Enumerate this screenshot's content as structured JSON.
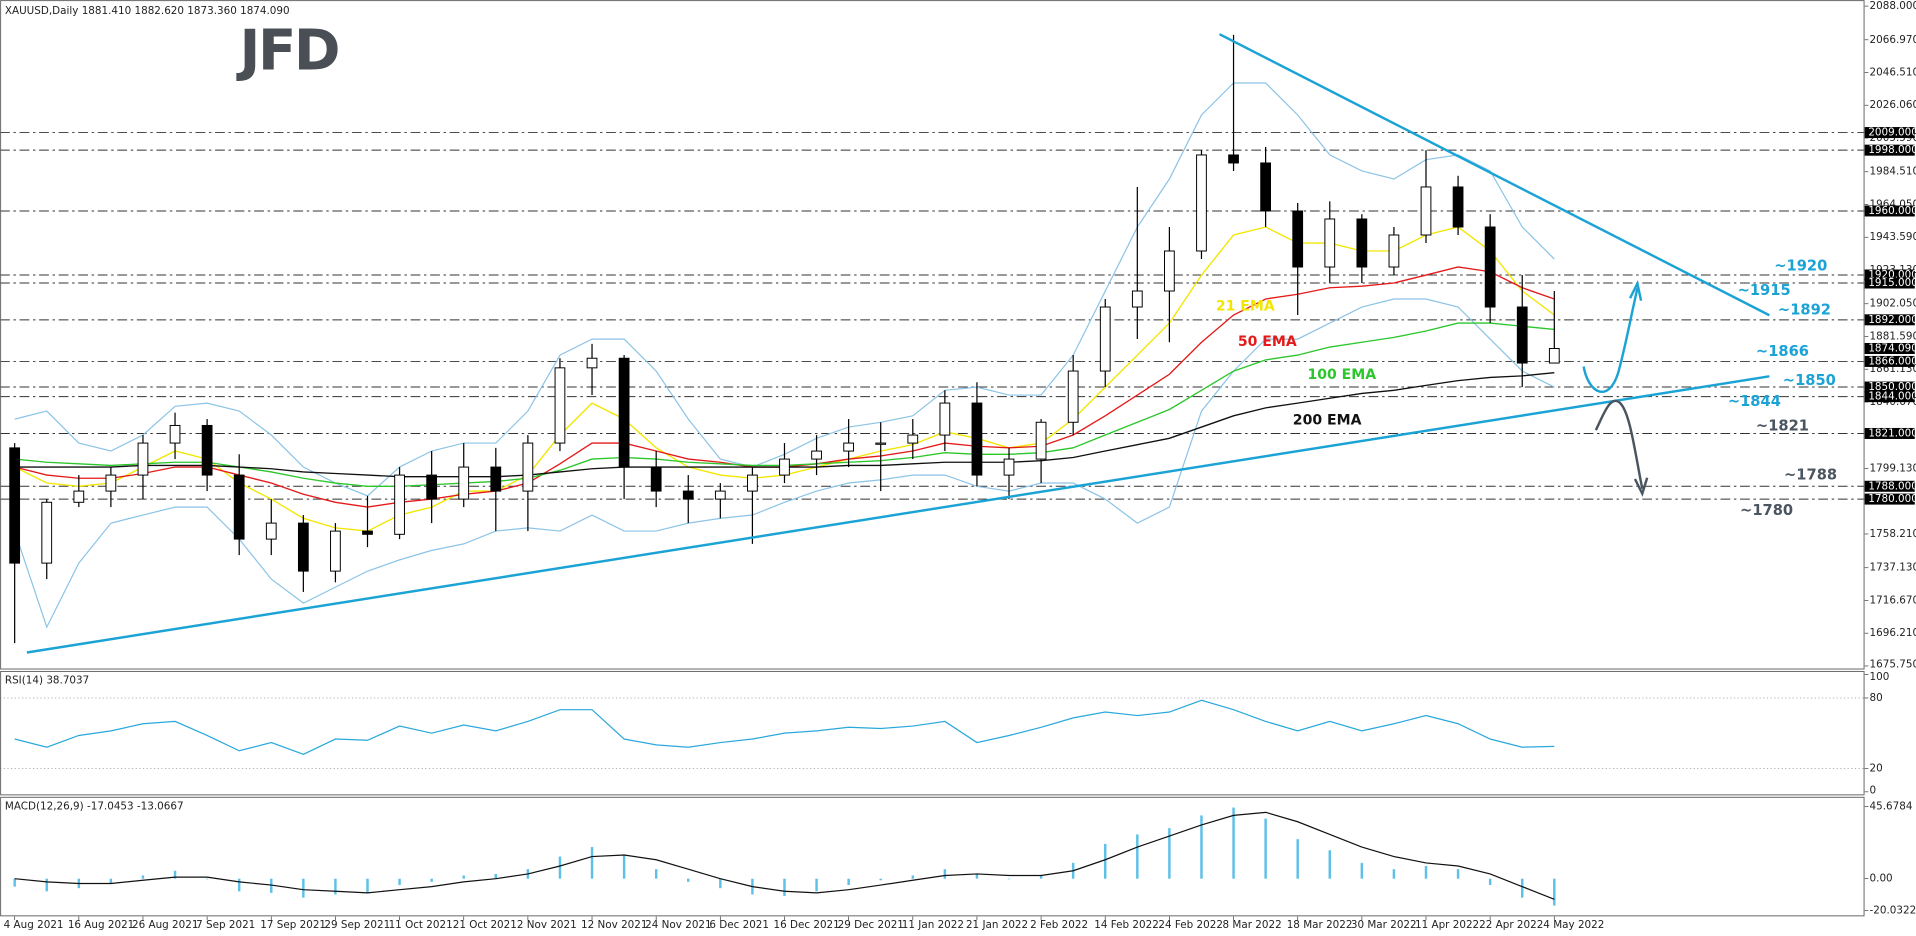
{
  "header": "XAUUSD,Daily  1881.410 1882.620 1873.360 1874.090",
  "logo": "JFD",
  "chart_data": [
    {
      "type": "candlestick",
      "categories": [
        "4 Aug 2021",
        null,
        "16 Aug 2021",
        null,
        "26 Aug 2021",
        null,
        "7 Sep 2021",
        null,
        "17 Sep 2021",
        null,
        "29 Sep 2021",
        null,
        "11 Oct 2021",
        null,
        "21 Oct 2021",
        null,
        "2 Nov 2021",
        null,
        "12 Nov 2021",
        null,
        "24 Nov 2021",
        null,
        "6 Dec 2021",
        null,
        "16 Dec 2021",
        null,
        "29 Dec 2021",
        null,
        "11 Jan 2022",
        null,
        "21 Jan 2022",
        null,
        "2 Feb 2022",
        null,
        "14 Feb 2022",
        null,
        "24 Feb 2022",
        null,
        "8 Mar 2022",
        null,
        "18 Mar 2022",
        null,
        "30 Mar 2022",
        null,
        "11 Apr 2022",
        null,
        "22 Apr 2022",
        null,
        "4 May 2022"
      ],
      "open": [
        1812,
        1740,
        1778,
        1785,
        1795,
        1815,
        1826,
        1795,
        1755,
        1765,
        1735,
        1760,
        1758,
        1795,
        1780,
        1800,
        1785,
        1815,
        1862,
        1868,
        1800,
        1785,
        1780,
        1785,
        1795,
        1805,
        1810,
        1815,
        1815,
        1820,
        1840,
        1795,
        1805,
        1828,
        1860,
        1900,
        1910,
        1935,
        1995,
        1990,
        1960,
        1925,
        1955,
        1925,
        1945,
        1975,
        1950,
        1900,
        1865
      ],
      "high": [
        1815,
        1780,
        1795,
        1800,
        1820,
        1834,
        1830,
        1808,
        1780,
        1770,
        1765,
        1782,
        1800,
        1810,
        1815,
        1812,
        1820,
        1868,
        1877,
        1870,
        1810,
        1795,
        1790,
        1800,
        1815,
        1820,
        1830,
        1828,
        1830,
        1848,
        1853,
        1812,
        1830,
        1870,
        1905,
        1975,
        1950,
        1998,
        2070,
        2000,
        1965,
        1966,
        1958,
        1950,
        1998,
        1982,
        1958,
        1920,
        1910
      ],
      "low": [
        1690,
        1730,
        1775,
        1775,
        1780,
        1805,
        1785,
        1745,
        1745,
        1722,
        1728,
        1750,
        1755,
        1765,
        1775,
        1760,
        1760,
        1810,
        1845,
        1780,
        1775,
        1765,
        1768,
        1752,
        1790,
        1795,
        1800,
        1785,
        1805,
        1810,
        1788,
        1780,
        1790,
        1820,
        1850,
        1880,
        1878,
        1930,
        1985,
        1950,
        1895,
        1915,
        1915,
        1920,
        1940,
        1945,
        1890,
        1850,
        1865
      ],
      "close": [
        1740,
        1778,
        1785,
        1795,
        1815,
        1826,
        1795,
        1755,
        1765,
        1735,
        1760,
        1758,
        1795,
        1780,
        1800,
        1785,
        1815,
        1862,
        1868,
        1800,
        1785,
        1780,
        1785,
        1795,
        1805,
        1810,
        1815,
        1815,
        1820,
        1840,
        1795,
        1805,
        1828,
        1860,
        1900,
        1910,
        1935,
        1995,
        1990,
        1960,
        1925,
        1955,
        1925,
        1945,
        1975,
        1950,
        1900,
        1865,
        1874.09
      ],
      "bull_color": "#ffffff",
      "bear_color": "#000000",
      "series": [
        {
          "name": "21 EMA",
          "color": "#f2e600",
          "values": [
            1800,
            1790,
            1788,
            1790,
            1800,
            1810,
            1805,
            1790,
            1780,
            1768,
            1762,
            1760,
            1770,
            1775,
            1785,
            1785,
            1795,
            1820,
            1840,
            1830,
            1812,
            1800,
            1795,
            1793,
            1795,
            1800,
            1805,
            1810,
            1814,
            1822,
            1818,
            1812,
            1815,
            1830,
            1850,
            1870,
            1890,
            1920,
            1945,
            1950,
            1940,
            1940,
            1935,
            1935,
            1945,
            1950,
            1935,
            1910,
            1895
          ]
        },
        {
          "name": "50 EMA",
          "color": "#e41a1a",
          "values": [
            1800,
            1795,
            1793,
            1793,
            1796,
            1800,
            1800,
            1795,
            1790,
            1783,
            1778,
            1775,
            1778,
            1780,
            1783,
            1785,
            1790,
            1802,
            1815,
            1815,
            1810,
            1805,
            1803,
            1800,
            1800,
            1802,
            1805,
            1807,
            1810,
            1815,
            1813,
            1812,
            1813,
            1820,
            1832,
            1845,
            1858,
            1878,
            1895,
            1905,
            1908,
            1912,
            1913,
            1915,
            1920,
            1925,
            1922,
            1912,
            1905
          ]
        },
        {
          "name": "100 EMA",
          "color": "#2bc62b",
          "values": [
            1805,
            1803,
            1802,
            1801,
            1802,
            1803,
            1803,
            1800,
            1797,
            1793,
            1790,
            1788,
            1788,
            1789,
            1790,
            1791,
            1793,
            1798,
            1805,
            1806,
            1805,
            1803,
            1802,
            1801,
            1801,
            1802,
            1803,
            1804,
            1806,
            1809,
            1808,
            1808,
            1809,
            1812,
            1820,
            1828,
            1836,
            1848,
            1860,
            1867,
            1870,
            1875,
            1878,
            1881,
            1885,
            1890,
            1890,
            1888,
            1886
          ]
        },
        {
          "name": "200 EMA",
          "color": "#111111",
          "values": [
            1800,
            1800,
            1800,
            1800,
            1801,
            1801,
            1801,
            1800,
            1799,
            1797,
            1796,
            1795,
            1794,
            1794,
            1794,
            1794,
            1795,
            1797,
            1799,
            1800,
            1800,
            1800,
            1800,
            1800,
            1800,
            1800,
            1801,
            1801,
            1802,
            1803,
            1803,
            1803,
            1804,
            1806,
            1810,
            1814,
            1818,
            1825,
            1832,
            1837,
            1840,
            1843,
            1846,
            1848,
            1851,
            1854,
            1856,
            1857,
            1859
          ]
        }
      ],
      "bands": {
        "color": "#8cc4e6",
        "upper": [
          1830,
          1835,
          1815,
          1810,
          1820,
          1838,
          1840,
          1835,
          1820,
          1800,
          1790,
          1782,
          1800,
          1810,
          1815,
          1815,
          1835,
          1870,
          1880,
          1880,
          1860,
          1830,
          1805,
          1800,
          1808,
          1818,
          1825,
          1828,
          1832,
          1848,
          1850,
          1845,
          1845,
          1870,
          1910,
          1950,
          1980,
          2020,
          2040,
          2040,
          2020,
          1995,
          1985,
          1980,
          1992,
          1995,
          1985,
          1950,
          1930
        ],
        "lower": [
          1760,
          1700,
          1740,
          1765,
          1770,
          1775,
          1775,
          1755,
          1730,
          1715,
          1725,
          1735,
          1742,
          1748,
          1752,
          1760,
          1762,
          1760,
          1770,
          1760,
          1760,
          1765,
          1768,
          1770,
          1778,
          1785,
          1790,
          1792,
          1795,
          1795,
          1788,
          1785,
          1790,
          1790,
          1780,
          1765,
          1775,
          1835,
          1860,
          1880,
          1880,
          1890,
          1900,
          1905,
          1905,
          1900,
          1880,
          1860,
          1850
        ]
      },
      "ylim": [
        1675.75,
        2088
      ],
      "yticks": [
        {
          "value": 2088,
          "label": "2088.000"
        },
        {
          "value": 2066.97,
          "label": "2066.970"
        },
        {
          "value": 2046.51,
          "label": "2046.510"
        },
        {
          "value": 2026.06,
          "label": "2026.060"
        },
        {
          "value": 2005.59,
          "label": "2005.590"
        },
        {
          "value": 1984.51,
          "label": "1984.510"
        },
        {
          "value": 1964.05,
          "label": "1964.050"
        },
        {
          "value": 1943.59,
          "label": "1943.590"
        },
        {
          "value": 1923.13,
          "label": "1923.130"
        },
        {
          "value": 1902.05,
          "label": "1902.050"
        },
        {
          "value": 1881.59,
          "label": "1881.590"
        },
        {
          "value": 1861.13,
          "label": "1861.130"
        },
        {
          "value": 1840.67,
          "label": "1840.670"
        },
        {
          "value": 1799.13,
          "label": "1799.130"
        },
        {
          "value": 1758.21,
          "label": "1758.210"
        },
        {
          "value": 1737.13,
          "label": "1737.130"
        },
        {
          "value": 1716.67,
          "label": "1716.670"
        },
        {
          "value": 1696.21,
          "label": "1696.210"
        },
        {
          "value": 1675.75,
          "label": "1675.750"
        }
      ],
      "levels": [
        {
          "value": 2009,
          "label": "2009.000"
        },
        {
          "value": 1998,
          "label": "1998.000"
        },
        {
          "value": 1960,
          "label": "1960.000"
        },
        {
          "value": 1920,
          "label": "1920.000"
        },
        {
          "value": 1915,
          "label": "1915.000"
        },
        {
          "value": 1892,
          "label": "1892.000"
        },
        {
          "value": 1866,
          "label": "1866.000"
        },
        {
          "value": 1850,
          "label": "1850.000"
        },
        {
          "value": 1844,
          "label": "1844.000"
        },
        {
          "value": 1821,
          "label": "1821.000"
        },
        {
          "value": 1788,
          "label": "1788.000"
        },
        {
          "value": 1780,
          "label": "1780.000"
        }
      ],
      "last_price": {
        "value": 1874.09,
        "label": "1874.090"
      },
      "annotations": [
        {
          "text": "~1920",
          "color": "#1ca3d6"
        },
        {
          "text": "~1915",
          "color": "#1ca3d6"
        },
        {
          "text": "~1892",
          "color": "#1ca3d6"
        },
        {
          "text": "~1866",
          "color": "#1ca3d6"
        },
        {
          "text": "~1850",
          "color": "#1ca3d6"
        },
        {
          "text": "~1844",
          "color": "#1ca3d6"
        },
        {
          "text": "~1821",
          "color": "#4a5560"
        },
        {
          "text": "~1788",
          "color": "#4a5560"
        },
        {
          "text": "~1780",
          "color": "#4a5560"
        }
      ]
    },
    {
      "type": "line",
      "title": "RSI(14) 38.7037",
      "color": "#29a8dc",
      "values": [
        45,
        38,
        48,
        52,
        58,
        60,
        48,
        35,
        42,
        32,
        45,
        44,
        56,
        50,
        57,
        52,
        60,
        70,
        70,
        45,
        40,
        38,
        42,
        45,
        50,
        52,
        55,
        54,
        56,
        60,
        42,
        48,
        55,
        63,
        68,
        65,
        68,
        78,
        70,
        60,
        52,
        60,
        52,
        58,
        65,
        58,
        45,
        38,
        38.7037
      ],
      "ylim": [
        0,
        100
      ],
      "yticks": [
        100,
        80,
        20,
        0
      ]
    },
    {
      "type": "macd",
      "title": "MACD(12,26,9) -17.0453 -13.0667",
      "color": "#5cc0e8",
      "signal_color": "#111111",
      "values": [
        -5,
        -8,
        -6,
        -3,
        2,
        5,
        0,
        -8,
        -9,
        -12,
        -10,
        -9,
        -4,
        -2,
        2,
        3,
        6,
        14,
        20,
        15,
        6,
        -2,
        -6,
        -10,
        -11,
        -8,
        -4,
        -1,
        2,
        6,
        3,
        0,
        2,
        10,
        22,
        28,
        32,
        40,
        45,
        38,
        25,
        18,
        10,
        6,
        8,
        6,
        -4,
        -12,
        -17.0453
      ],
      "signal": [
        0,
        -2,
        -3,
        -3,
        -1,
        1,
        1,
        -2,
        -4,
        -7,
        -8,
        -9,
        -7,
        -5,
        -2,
        0,
        3,
        8,
        14,
        15,
        12,
        6,
        0,
        -5,
        -8,
        -9,
        -7,
        -4,
        -1,
        2,
        3,
        2,
        2,
        5,
        12,
        20,
        27,
        34,
        40,
        42,
        36,
        28,
        20,
        14,
        10,
        8,
        3,
        -5,
        -13.0667
      ],
      "ylim": [
        -20.0322,
        45.6784
      ],
      "yticks": [
        45.6784,
        {
          "value": 0,
          "label": "0.00"
        },
        -20.0322
      ]
    }
  ]
}
